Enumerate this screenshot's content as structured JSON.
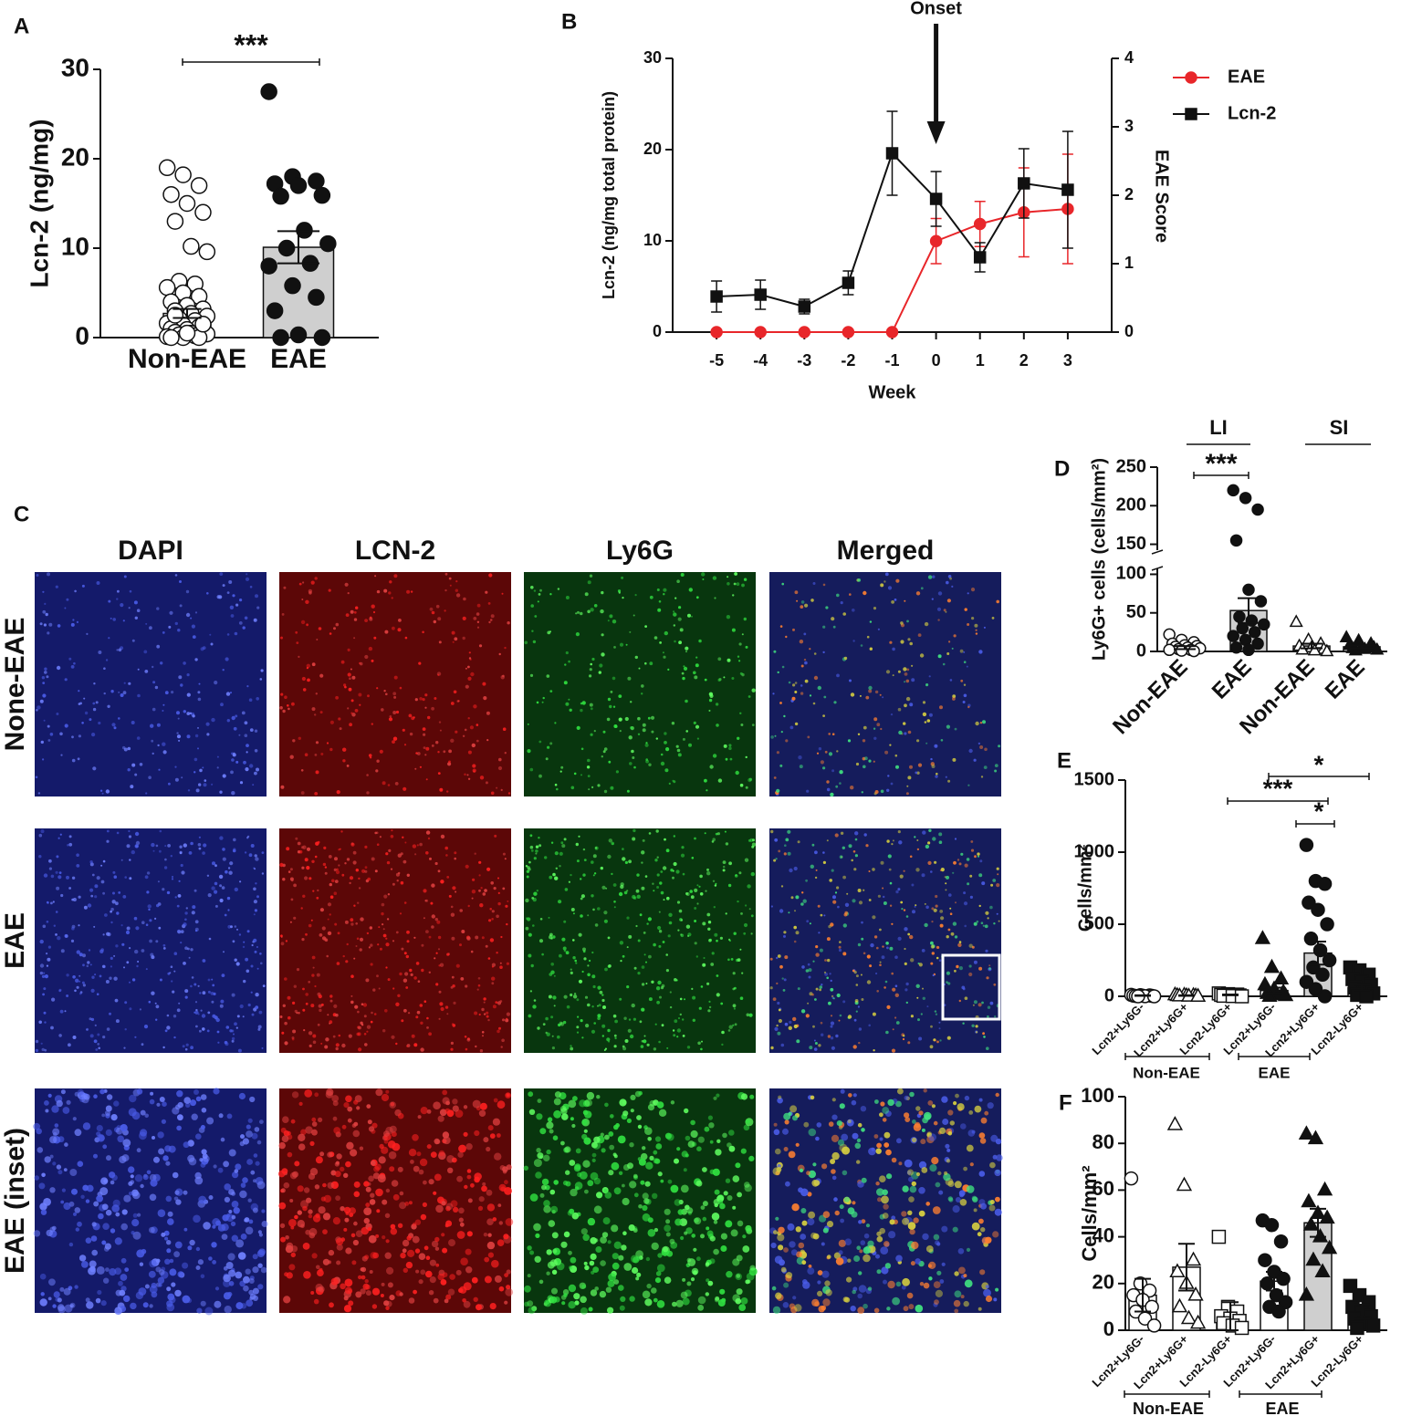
{
  "chart_data": [
    {
      "type": "bar",
      "label": "A",
      "ylabel": "Lcn-2 (ng/mg)",
      "categories": [
        "Non-EAE",
        "EAE"
      ],
      "values": [
        2.7,
        10.1
      ],
      "errors": [
        0.5,
        1.8
      ],
      "colors": [
        "#ffffff",
        "#cfcfcf"
      ],
      "markers": [
        "circle-open",
        "circle"
      ],
      "points": [
        [
          19,
          18.2,
          17,
          16,
          15,
          14,
          13,
          10.2,
          9.6,
          6.3,
          6,
          5.6,
          5,
          4.6,
          4,
          3.6,
          3.2,
          3,
          2.7,
          2.4,
          2.1,
          1.9,
          1.6,
          1.4,
          1.2,
          1,
          0.9,
          0.7,
          0.6,
          0.5,
          0.4,
          0.3,
          0.2,
          0.1,
          0,
          0,
          0,
          0.5,
          1.5,
          2.5
        ],
        [
          27.5,
          18,
          17.5,
          17.2,
          17,
          15.9,
          15.8,
          12,
          10.5,
          10,
          8.3,
          8,
          5.8,
          4.5,
          3,
          0.3,
          0,
          0
        ]
      ],
      "ylim": [
        0,
        30
      ],
      "yticks": [
        0,
        10,
        20,
        30
      ],
      "annotations": [
        "***"
      ]
    },
    {
      "type": "line",
      "label": "B",
      "annotation": "Onset",
      "xlabel": "Week",
      "ylabel": "Lcn-2 (ng/mg total protein)",
      "y2label": "EAE Score",
      "x": [
        -5,
        -4,
        -3,
        -2,
        -1,
        0,
        1,
        2,
        3
      ],
      "xlim": [
        -6,
        4
      ],
      "xticks": [
        -5,
        -4,
        -3,
        -2,
        -1,
        0,
        1,
        2,
        3
      ],
      "ylim": [
        0,
        30
      ],
      "yticks": [
        0,
        10,
        20,
        30
      ],
      "y2lim": [
        0,
        4
      ],
      "y2ticks": [
        0,
        1,
        2,
        3,
        4
      ],
      "series": [
        {
          "name": "EAE",
          "color": "#e8262a",
          "marker": "circle",
          "axis": "y2",
          "values": [
            0,
            0,
            0,
            0,
            0,
            1.33,
            1.58,
            1.75,
            1.8
          ],
          "errors": [
            0,
            0,
            0,
            0,
            0,
            0.33,
            0.33,
            0.65,
            0.8
          ]
        },
        {
          "name": "Lcn-2",
          "color": "#111111",
          "marker": "square",
          "values": [
            3.9,
            4.1,
            2.8,
            5.4,
            19.6,
            14.6,
            8.2,
            16.3,
            15.6
          ],
          "errors": [
            1.7,
            1.6,
            0.8,
            1.3,
            4.6,
            3,
            1.6,
            3.8,
            6.4
          ]
        }
      ],
      "legend": "right"
    },
    {
      "type": "image",
      "label": "C",
      "columns": [
        "DAPI",
        "LCN-2",
        "Ly6G",
        "Merged"
      ],
      "rows": [
        "None-EAE",
        "EAE",
        "EAE (inset)"
      ]
    },
    {
      "type": "bar",
      "label": "D",
      "ylabel": "Ly6G+ cells (cells/mm²)",
      "categories": [
        "Non-EAE",
        "EAE",
        "Non-EAE",
        "EAE"
      ],
      "group_labels": [
        "LI",
        "SI"
      ],
      "values": [
        5,
        53,
        7,
        6
      ],
      "errors": [
        2,
        16,
        3,
        2
      ],
      "colors": [
        "#ffffff",
        "#cfcfcf",
        "#ffffff",
        "#ffffff"
      ],
      "markers": [
        "circle-open",
        "circle",
        "triangle-open",
        "triangle"
      ],
      "points": [
        [
          22,
          15,
          12,
          10,
          8,
          7,
          6,
          5,
          4,
          3,
          2,
          2,
          1,
          0.5
        ],
        [
          220,
          210,
          195,
          155,
          80,
          65,
          45,
          40,
          35,
          30,
          25,
          20,
          15,
          10,
          5,
          2
        ],
        [
          38,
          15,
          10,
          7,
          5,
          3,
          2,
          1,
          0
        ],
        [
          18,
          14,
          10,
          8,
          6,
          5,
          4,
          3,
          2,
          1
        ]
      ],
      "ylim": [
        0,
        250
      ],
      "y_break": [
        110,
        140
      ],
      "yticks": [
        0,
        50,
        100,
        150,
        200,
        250
      ],
      "annotations": [
        "***"
      ]
    },
    {
      "type": "bar",
      "label": "E",
      "ylabel": "Cells/mm²",
      "categories": [
        "Lcn2+Ly6G-",
        "Lcn2+Ly6G+",
        "Lcn2-Ly6G+",
        "Lcn2+Ly6G-",
        "Lcn2+Ly6G+",
        "Lcn2-Ly6G+"
      ],
      "group_labels": [
        "Non-EAE",
        "EAE"
      ],
      "values": [
        5,
        5,
        10,
        40,
        300,
        60
      ],
      "errors": [
        2,
        2,
        3,
        20,
        80,
        20
      ],
      "colors": [
        "#ffffff",
        "#ffffff",
        "#ffffff",
        "#ffffff",
        "#cfcfcf",
        "#ffffff"
      ],
      "markers": [
        "circle-open",
        "triangle-open",
        "square-open",
        "triangle",
        "circle",
        "square"
      ],
      "points": [
        [
          10,
          8,
          6,
          5,
          4,
          3,
          2,
          1,
          0,
          0
        ],
        [
          10,
          8,
          6,
          5,
          4,
          3,
          2,
          1,
          0
        ],
        [
          20,
          15,
          12,
          10,
          8,
          6,
          4,
          2,
          0
        ],
        [
          400,
          200,
          120,
          80,
          50,
          30,
          20,
          10,
          5,
          0
        ],
        [
          1050,
          800,
          780,
          650,
          600,
          500,
          400,
          320,
          250,
          200,
          150,
          100,
          50,
          0
        ],
        [
          200,
          180,
          150,
          120,
          100,
          80,
          60,
          40,
          20,
          10,
          0
        ]
      ],
      "ylim": [
        0,
        1500
      ],
      "yticks": [
        0,
        500,
        1000,
        1500
      ],
      "annotations": [
        "*",
        "***",
        "*"
      ]
    },
    {
      "type": "bar",
      "label": "F",
      "ylabel": "Cells/mm²",
      "categories": [
        "Lcn2+Ly6G-",
        "Lcn2+Ly6G+",
        "Lcn2-Ly6G+",
        "Lcn2+Ly6G-",
        "Lcn2+Ly6G+",
        "Lcn2-Ly6G+"
      ],
      "group_labels": [
        "Non-EAE",
        "EAE"
      ],
      "values": [
        15,
        27,
        6,
        21,
        46,
        8
      ],
      "errors": [
        7,
        10,
        6,
        4,
        6,
        3
      ],
      "colors": [
        "#ffffff",
        "#ffffff",
        "#ffffff",
        "#ffffff",
        "#cfcfcf",
        "#ffffff"
      ],
      "markers": [
        "circle-open",
        "triangle-open",
        "square-open",
        "circle",
        "triangle",
        "square"
      ],
      "points": [
        [
          65,
          20,
          17,
          15,
          13,
          10,
          8,
          5,
          2
        ],
        [
          88,
          62,
          30,
          25,
          20,
          15,
          10,
          5,
          3
        ],
        [
          40,
          10,
          8,
          6,
          5,
          4,
          3,
          2,
          1
        ],
        [
          47,
          45,
          38,
          30,
          25,
          22,
          20,
          15,
          12,
          10,
          8
        ],
        [
          84,
          82,
          60,
          55,
          50,
          48,
          45,
          40,
          35,
          30,
          25,
          15
        ],
        [
          19,
          15,
          12,
          10,
          8,
          6,
          5,
          3,
          2,
          1
        ]
      ],
      "ylim": [
        0,
        100
      ],
      "yticks": [
        0,
        20,
        40,
        60,
        80,
        100
      ]
    }
  ]
}
